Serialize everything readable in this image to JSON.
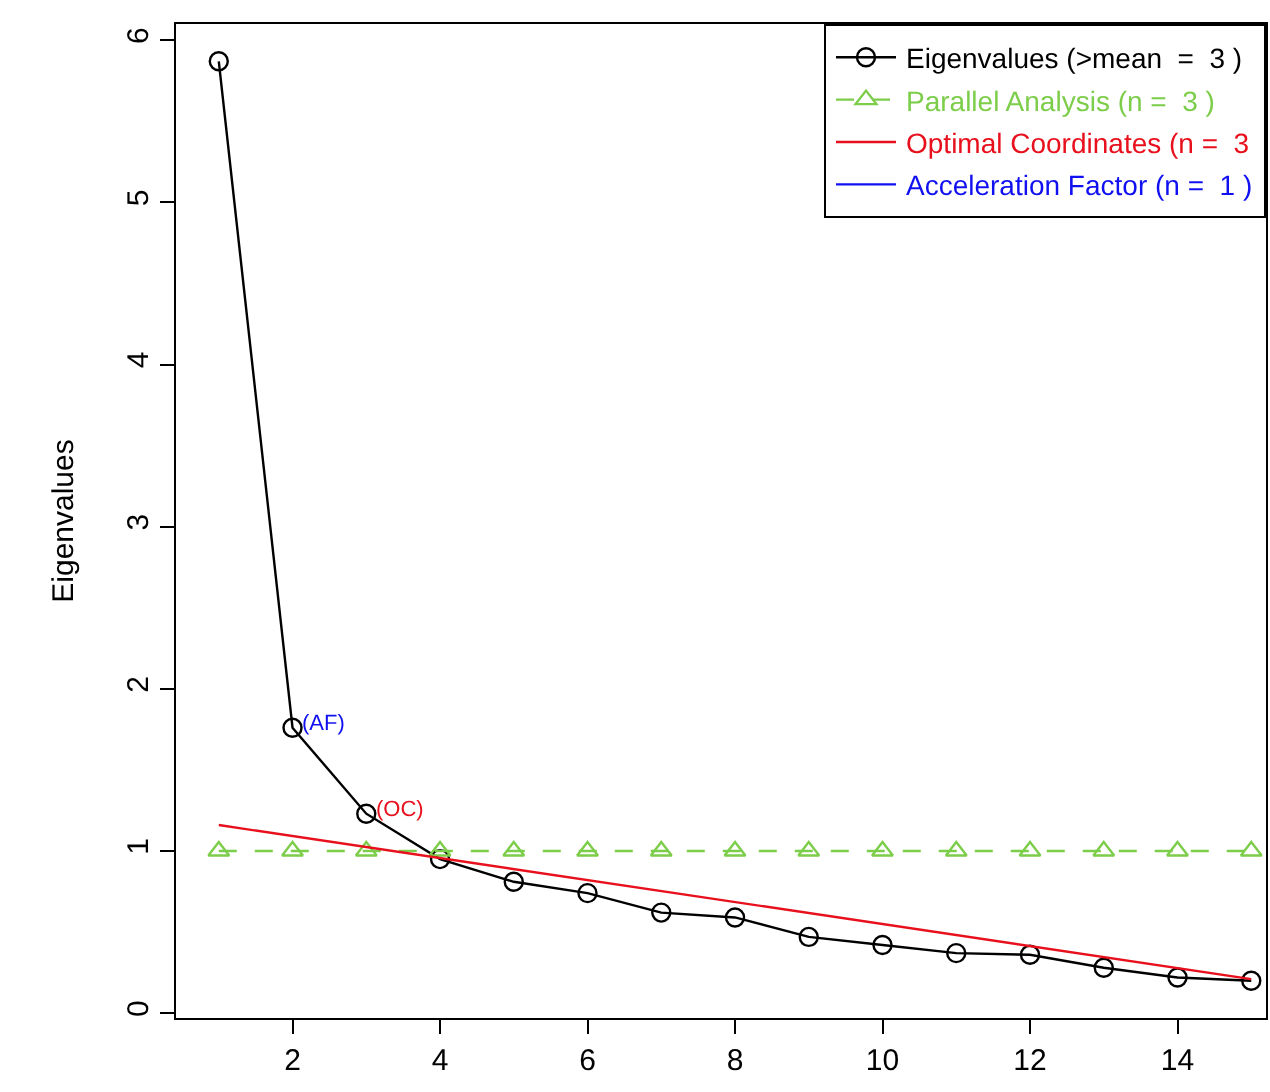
{
  "chart_data": {
    "type": "line",
    "ylabel": "Eigenvalues",
    "x": [
      1,
      2,
      3,
      4,
      5,
      6,
      7,
      8,
      9,
      10,
      11,
      12,
      13,
      14,
      15
    ],
    "series": [
      {
        "name": "Eigenvalues (>mean  =  3 )",
        "color": "#000000",
        "marker": "circle",
        "line_style": "solid",
        "values": [
          5.87,
          1.76,
          1.23,
          0.95,
          0.81,
          0.74,
          0.62,
          0.59,
          0.47,
          0.42,
          0.37,
          0.36,
          0.28,
          0.22,
          0.2
        ]
      },
      {
        "name": "Parallel Analysis (n =  3 )",
        "color": "#7ccd4a",
        "marker": "triangle",
        "line_style": "dashed",
        "values": [
          1,
          1,
          1,
          1,
          1,
          1,
          1,
          1,
          1,
          1,
          1,
          1,
          1,
          1,
          1
        ]
      },
      {
        "name": "Optimal Coordinates (n =  3",
        "color": "#e8101c",
        "marker": "none",
        "line_style": "solid",
        "x": [
          1,
          15
        ],
        "values": [
          1.16,
          0.21
        ]
      },
      {
        "name": "Acceleration Factor (n =  1 )",
        "color": "#1010f0",
        "marker": "none",
        "line_style": "solid",
        "values": [
          null,
          null,
          null,
          null,
          null,
          null,
          null,
          null,
          null,
          null,
          null,
          null,
          null,
          null,
          null
        ]
      }
    ],
    "annotations": [
      {
        "text": "(AF)",
        "x": 2,
        "y": 1.76
      },
      {
        "text": "(OC)",
        "x": 3,
        "y": 1.23
      }
    ],
    "xlim": [
      0.42,
      15.2
    ],
    "xticks": [
      2,
      4,
      6,
      8,
      10,
      12,
      14
    ],
    "ylim": [
      -0.03,
      6.1
    ],
    "yticks": [
      0,
      1,
      2,
      3,
      4,
      5,
      6
    ],
    "legend": "top right"
  }
}
